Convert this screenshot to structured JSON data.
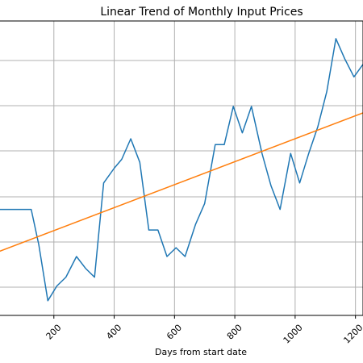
{
  "chart_data": {
    "type": "line",
    "title": "Linear Trend of Monthly Input Prices",
    "xlabel": "Days from start date",
    "ylabel": "",
    "xlim": [
      0,
      1225
    ],
    "ylim": [
      0,
      1
    ],
    "grid": true,
    "x_ticks": [
      200,
      400,
      600,
      800,
      1000,
      1200
    ],
    "x_tick_labels": [
      "200",
      "400",
      "600",
      "800",
      "1000",
      "1200"
    ],
    "series": [
      {
        "color": "#1f77b4",
        "x": [
          0,
          15,
          45,
          75,
          125,
          150,
          180,
          210,
          240,
          275,
          305,
          335,
          365,
          400,
          425,
          455,
          485,
          515,
          545,
          575,
          605,
          635,
          670,
          700,
          735,
          765,
          795,
          825,
          855,
          890,
          920,
          950,
          985,
          1015,
          1045,
          1075,
          1105,
          1135,
          1165,
          1195,
          1230
        ],
        "y": [
          0.38,
          0.36,
          0.36,
          0.36,
          0.36,
          0.24,
          0.05,
          0.1,
          0.13,
          0.2,
          0.16,
          0.13,
          0.45,
          0.5,
          0.53,
          0.6,
          0.52,
          0.29,
          0.29,
          0.2,
          0.23,
          0.2,
          0.31,
          0.38,
          0.58,
          0.58,
          0.71,
          0.62,
          0.71,
          0.55,
          0.44,
          0.36,
          0.55,
          0.45,
          0.55,
          0.64,
          0.76,
          0.94,
          0.87,
          0.81,
          0.86
        ]
      },
      {
        "color": "#ff7f0e",
        "x": [
          0,
          1230
        ],
        "y": [
          0.21,
          0.69
        ]
      }
    ]
  }
}
